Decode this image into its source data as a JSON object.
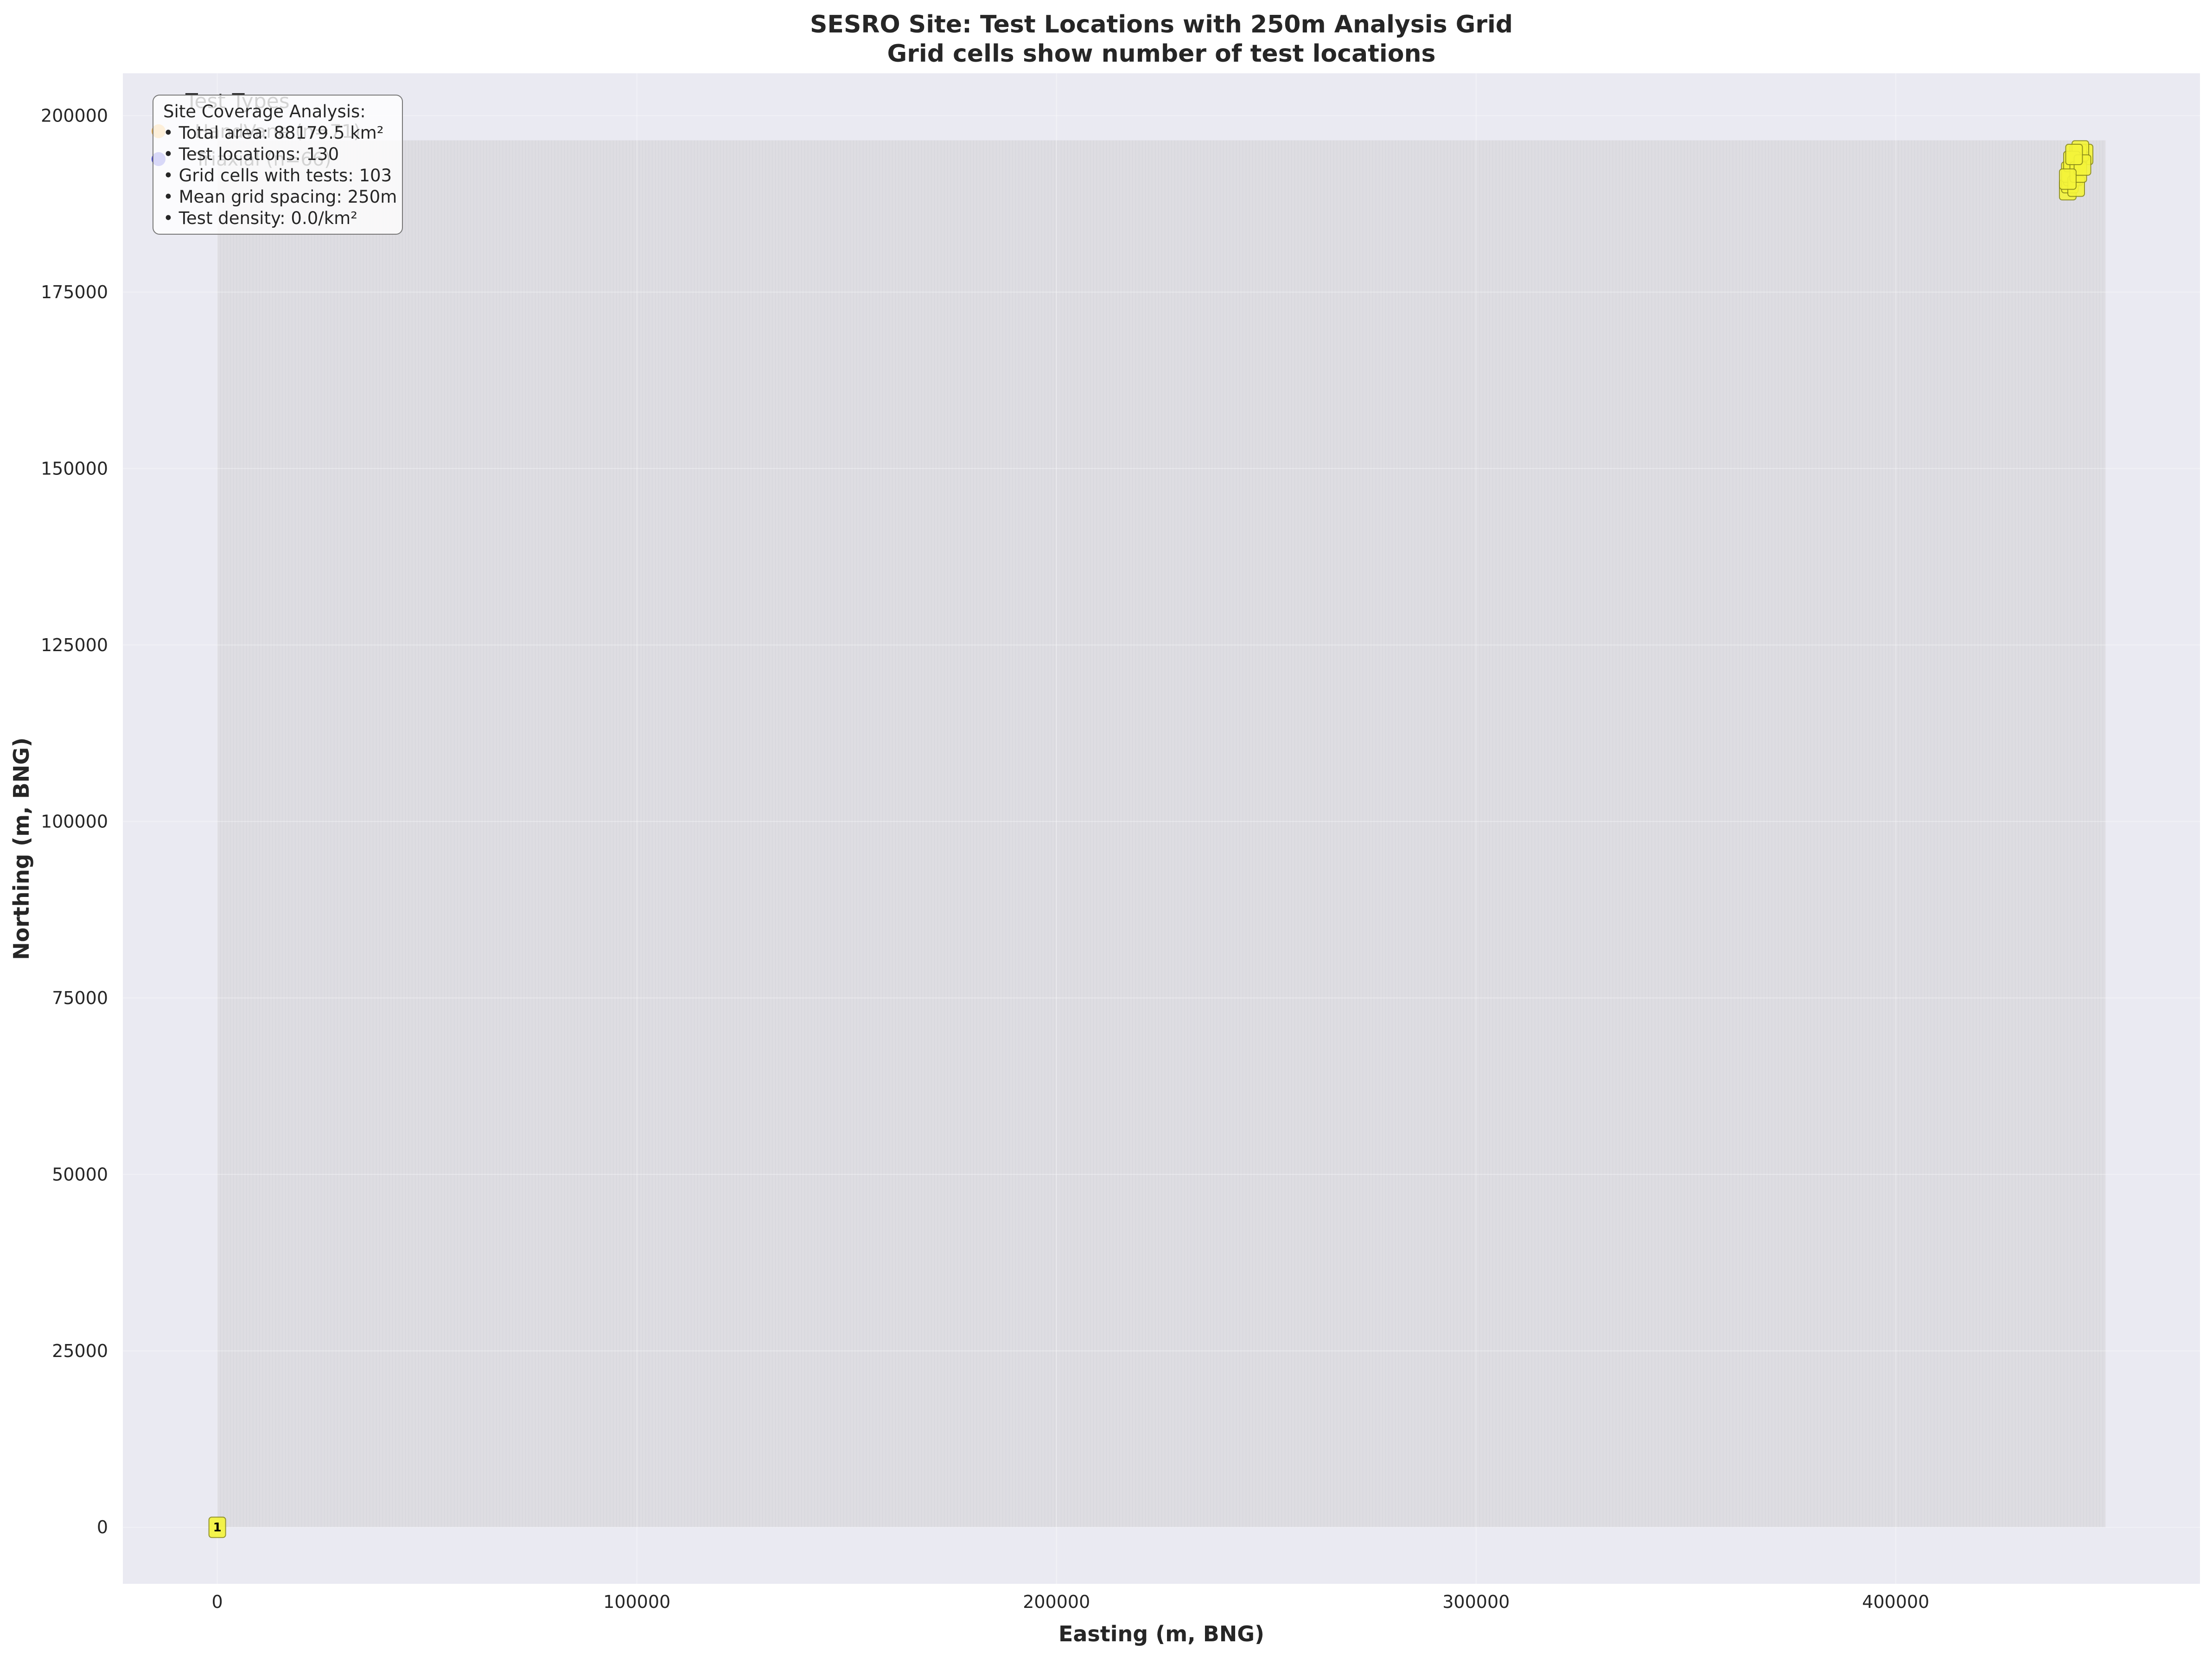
{
  "chart_data": {
    "type": "scatter",
    "title": "SESRO Site: Test Locations with 250m Analysis Grid",
    "subtitle": "Grid cells show number of test locations",
    "xlabel": "Easting (m, BNG)",
    "ylabel": "Northing (m, BNG)",
    "xlim": [
      -22500,
      472500
    ],
    "ylim": [
      -8000,
      206000
    ],
    "xticks": [
      0,
      100000,
      200000,
      300000,
      400000
    ],
    "yticks": [
      0,
      25000,
      50000,
      75000,
      100000,
      125000,
      150000,
      175000,
      200000
    ],
    "xtick_labels": [
      "0",
      "100000",
      "200000",
      "300000",
      "400000"
    ],
    "ytick_labels": [
      "0",
      "25000",
      "50000",
      "75000",
      "100000",
      "125000",
      "150000",
      "175000",
      "200000"
    ],
    "grid": true,
    "grid_extent": {
      "x": [
        0,
        450000
      ],
      "y": [
        0,
        196500
      ]
    },
    "grid_cell_counts": [
      {
        "x": 0,
        "y": 0,
        "count": 1
      },
      {
        "x": 445000,
        "y": 194500,
        "count": 2
      },
      {
        "x": 442500,
        "y": 191500,
        "count": 1
      },
      {
        "x": 441000,
        "y": 189500
      },
      {
        "x": 441500,
        "y": 190500
      },
      {
        "x": 442000,
        "y": 191500
      },
      {
        "x": 442500,
        "y": 192500
      },
      {
        "x": 443000,
        "y": 193500
      },
      {
        "x": 443500,
        "y": 194500
      },
      {
        "x": 444000,
        "y": 195000
      },
      {
        "x": 441500,
        "y": 192000
      },
      {
        "x": 442000,
        "y": 193500
      },
      {
        "x": 443000,
        "y": 190000
      },
      {
        "x": 443500,
        "y": 192000
      },
      {
        "x": 444500,
        "y": 193000
      },
      {
        "x": 442500,
        "y": 194500
      },
      {
        "x": 441000,
        "y": 191000
      }
    ],
    "legend": {
      "title": "Test Types",
      "placement": "upper-left",
      "entries": [
        {
          "label": "HandVane (n=71)",
          "color": "#f5a623"
        },
        {
          "label": "Triaxial (n=66)",
          "color": "#1f1fd6"
        }
      ]
    },
    "annotation": {
      "placement": "upper-left",
      "lines": [
        "Site Coverage Analysis:",
        "• Total area: 88179.5 km²",
        "• Test locations: 130",
        "• Grid cells with tests: 103",
        "• Mean grid spacing: 250m",
        "• Test density: 0.0/km²"
      ]
    }
  },
  "colors": {
    "axes_bg": "#eaeaf2",
    "grid_region": "#dedde2",
    "cell_fill": "#f5f53a",
    "cell_stroke": "#8a8a1a"
  }
}
